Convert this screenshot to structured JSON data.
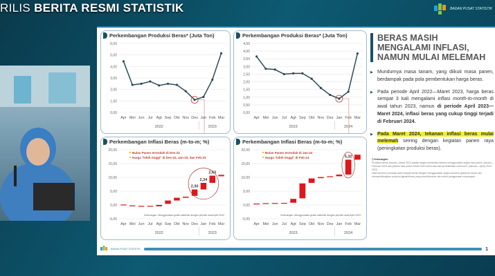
{
  "header": {
    "prefix": "RILIS",
    "title": "BERITA RESMI STATISTIK"
  },
  "logo": {
    "text": "BADAN PUSAT STATISTIK"
  },
  "slide": {
    "heading": "BERAS MASIH MENGALAMI INFLASI, NAMUN MULAI MELEMAH",
    "bullets": [
      {
        "text": "Mundurnya masa tanam, yang diikuti masa panen, berdampak pada pola pembentukan harga beras."
      },
      {
        "pre": "Pada periode April 2022—Maret 2023, harga beras sempat 3 kali mengalami inflasi ",
        "em": "month-to-month",
        "mid": " di awal tahun 2023, namun ",
        "bold": "di periode April 2023—Maret 2024, inflasi beras yang cukup tinggi terjadi di Februari 2024."
      },
      {
        "highlight": "Pada Maret 2024, tekanan inflasi beras mulai melemah",
        "rest": " seiring dengan kegiatan panen raya (peningkatan produksi beras)."
      }
    ],
    "notes_title": "*) Keterangan:",
    "notes": [
      "Produksi beras Januari—Maret 2024 adalah angka sementara karena menggunakan angka luas panen Januari—Februari 2024 dan potensi luas panen Maret 2024 serta rata-rata produktivitas subround I (Januari—April) 2019-2023.",
      "Hasil konversi produksi padi menjadi beras dengan menggunakan angka konversi gabah ke beras dan memperhitungkan proporsi gabah/beras yang susut/tercecer dan untuk penggunaan nonpangan."
    ],
    "footer_logo": "BADAN PUSAT STATISTIK",
    "page": "1"
  },
  "chart_data": [
    {
      "type": "line",
      "title": "Perkembangan Produksi Beras* (Juta Ton)",
      "categories": [
        "Apr",
        "Mei",
        "Jun",
        "Jul",
        "Agt",
        "Sep",
        "Okt",
        "Nov",
        "Des",
        "Jan",
        "Feb",
        "Mar"
      ],
      "years": [
        "2022",
        "2023"
      ],
      "values": [
        4.45,
        2.4,
        2.5,
        2.7,
        2.35,
        2.5,
        2.4,
        1.85,
        1.1,
        1.35,
        2.85,
        5.15
      ],
      "ylim": [
        0,
        6
      ],
      "ystep": 1,
      "yticks": [
        "0,00",
        "1,00",
        "2,00",
        "3,00",
        "4,00",
        "5,00",
        "6,00"
      ],
      "highlight_index": 8,
      "color": "#2d4a56"
    },
    {
      "type": "line",
      "title": "Perkembangan Produksi Beras* (Juta Ton)",
      "categories": [
        "Apr",
        "Mei",
        "Jun",
        "Jul",
        "Agt",
        "Sep",
        "Okt",
        "Nov",
        "Des",
        "Jan",
        "Feb",
        "Mar"
      ],
      "years": [
        "2023",
        "2024"
      ],
      "values": [
        3.65,
        2.85,
        2.8,
        2.5,
        2.55,
        2.55,
        2.2,
        1.6,
        1.15,
        0.9,
        1.35,
        3.85
      ],
      "ylim": [
        0,
        4.5
      ],
      "ystep": 0.5,
      "yticks": [
        "0,00",
        "0,50",
        "1,00",
        "1,50",
        "2,00",
        "2,50",
        "3,00",
        "3,50",
        "4,00",
        "4,50"
      ],
      "highlight_index": 9,
      "color": "#2d4a56"
    },
    {
      "type": "waterfall",
      "title": "Perkembangan Inflasi Beras (m-to-m; %)",
      "categories": [
        "Apr",
        "Mei",
        "Jun",
        "Jul",
        "Agt",
        "Sep",
        "Okt",
        "Nov",
        "Des",
        "Jan",
        "Feb",
        "Mar"
      ],
      "years": [
        "2022",
        "2023"
      ],
      "ranges": [
        [
          -0.15,
          0.15
        ],
        [
          -0.35,
          -0.2
        ],
        [
          -0.45,
          -0.35
        ],
        [
          -0.45,
          -0.35
        ],
        [
          -0.5,
          0
        ],
        [
          0.4,
          1.6
        ],
        [
          1.6,
          2.6
        ],
        [
          2.6,
          3.0
        ],
        [
          3.3,
          5.6
        ],
        [
          5.6,
          8.0
        ],
        [
          8.0,
          10.6
        ],
        [
          10.4,
          10.9
        ]
      ],
      "labels": {
        "8": "2,30",
        "9": "2,34",
        "10": "2,63"
      },
      "ylim": [
        -5,
        20
      ],
      "yticks": [
        "-5,00",
        "0,00",
        "5,00",
        "10,00",
        "15,00",
        "20,00"
      ],
      "legend": [
        "Bulan Panen terendah di Des-22",
        "Harga \"lebih tinggi\" di Des-22, Jan-23, dan Feb-23"
      ],
      "note": "Keterangan: Menggunakan grafik waterfall dengan periode awal April 2022",
      "color": "#e0161b"
    },
    {
      "type": "waterfall",
      "title": "Perkembangan Inflasi Beras (m-to-m; %)",
      "categories": [
        "Apr",
        "Mei",
        "Jun",
        "Jul",
        "Agt",
        "Sep",
        "Okt",
        "Nov",
        "Des",
        "Jan",
        "Feb",
        "Mar"
      ],
      "years": [
        "2023",
        "2024"
      ],
      "ranges": [
        [
          0.2,
          0.5
        ],
        [
          0.5,
          0.65
        ],
        [
          0.55,
          0.7
        ],
        [
          0.6,
          0.75
        ],
        [
          0.8,
          2.2
        ],
        [
          2.4,
          7.8
        ],
        [
          8.0,
          9.6
        ],
        [
          9.7,
          10.1
        ],
        [
          10.1,
          10.4
        ],
        [
          10.4,
          11.0
        ],
        [
          11.0,
          16.4
        ],
        [
          16.4,
          18.2
        ]
      ],
      "labels": {
        "10": "5,32"
      },
      "ylim": [
        -5,
        20
      ],
      "yticks": [
        "-5,00",
        "0,00",
        "5,00",
        "10,00",
        "15,00",
        "20,00"
      ],
      "legend": [
        "Bulan Panen terendah di Jan-24",
        "Harga \"lebih tinggi\" di Feb-24"
      ],
      "note": "Keterangan: Menggunakan grafik waterfall dengan periode awal April 2023",
      "color": "#e0161b"
    }
  ]
}
